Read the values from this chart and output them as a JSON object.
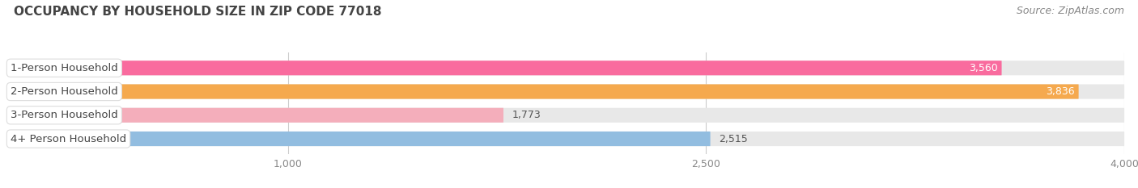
{
  "title": "OCCUPANCY BY HOUSEHOLD SIZE IN ZIP CODE 77018",
  "source": "Source: ZipAtlas.com",
  "categories": [
    "1-Person Household",
    "2-Person Household",
    "3-Person Household",
    "4+ Person Household"
  ],
  "values": [
    3560,
    3836,
    1773,
    2515
  ],
  "colors": [
    "#F96B9E",
    "#F5A94E",
    "#F4AEBB",
    "#92BDE0"
  ],
  "bar_bg_color": "#E8E8E8",
  "xlim": [
    0,
    4000
  ],
  "xticks": [
    1000,
    2500,
    4000
  ],
  "label_values": [
    "3,560",
    "3,836",
    "1,773",
    "2,515"
  ],
  "label_inside": [
    true,
    true,
    false,
    false
  ],
  "title_fontsize": 11,
  "source_fontsize": 9,
  "tick_fontsize": 9,
  "bar_label_fontsize": 9,
  "category_fontsize": 9.5,
  "background_color": "#FFFFFF",
  "bar_height": 0.62,
  "rounding_size": 0.25
}
